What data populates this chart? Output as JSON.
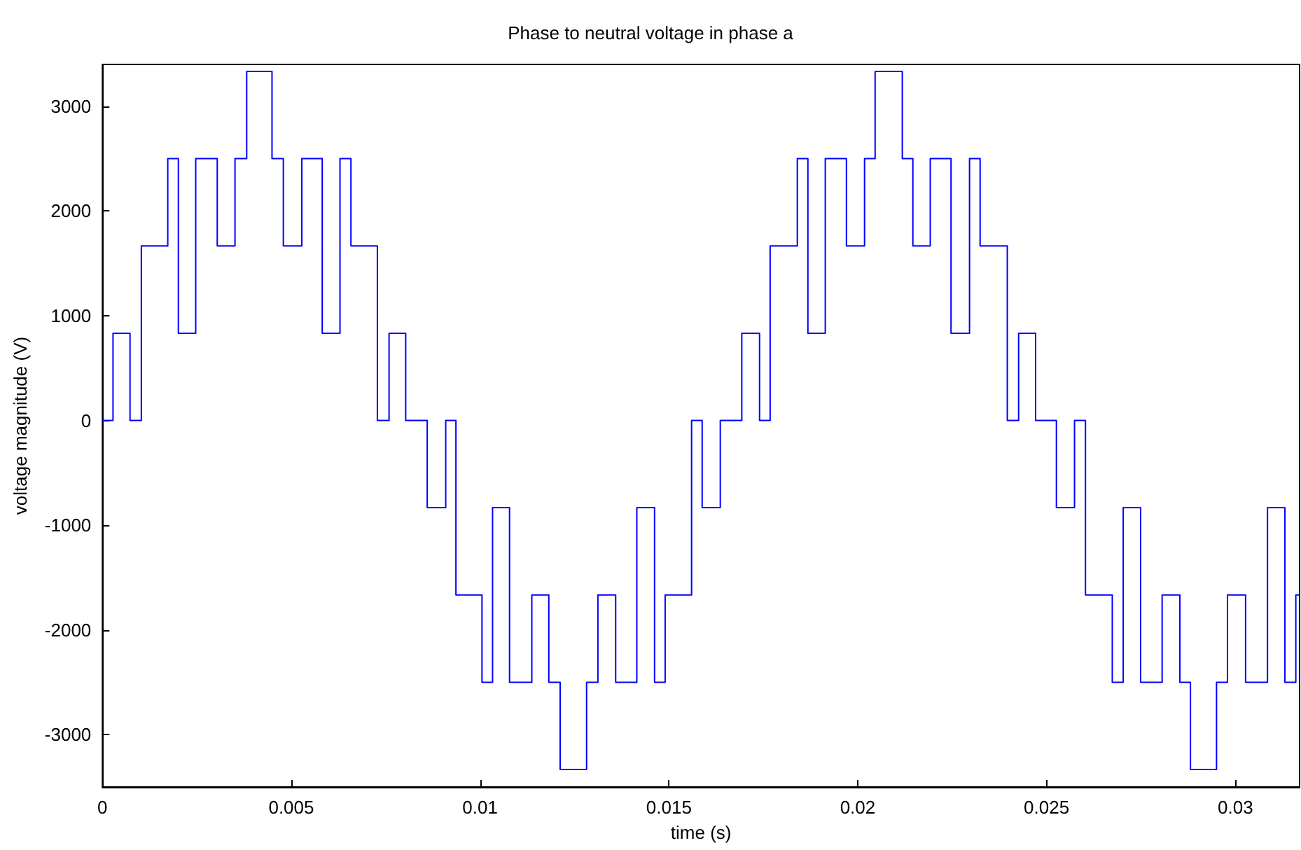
{
  "chart_data": {
    "type": "step",
    "title": "Phase to neutral voltage in phase a",
    "xlabel": "time (s)",
    "ylabel": "voltage magnitude (V)",
    "xlim": [
      0,
      0.0317
    ],
    "xticks": [
      0,
      0.005,
      0.01,
      0.015,
      0.02,
      0.025,
      0.03
    ],
    "ylim": [
      -3500,
      3400
    ],
    "yticks": [
      -3000,
      -2000,
      -1000,
      0,
      1000,
      2000,
      3000
    ],
    "marker": "none",
    "line_style": "solid",
    "series": [
      {
        "color": "#0000ff",
        "x": [
          0,
          0.00028,
          0.00073,
          0.00103,
          0.00173,
          0.00201,
          0.00247,
          0.00304,
          0.00351,
          0.00382,
          0.00449,
          0.00479,
          0.00528,
          0.00582,
          0.00629,
          0.00658,
          0.00728,
          0.00759,
          0.00803,
          0.0086,
          0.00909,
          0.00936,
          0.01005,
          0.01033,
          0.01078,
          0.01137,
          0.01182,
          0.01212,
          0.01282,
          0.01312,
          0.01359,
          0.01415,
          0.01462,
          0.0149,
          0.0156,
          0.01588,
          0.01636,
          0.01693,
          0.0174,
          0.01768,
          0.0184,
          0.01868,
          0.01914,
          0.0197,
          0.02018,
          0.02046,
          0.02118,
          0.02146,
          0.02192,
          0.02247,
          0.02296,
          0.02324,
          0.02396,
          0.02426,
          0.02471,
          0.02526,
          0.02574,
          0.02603,
          0.02674,
          0.02703,
          0.02749,
          0.02806,
          0.02853,
          0.02881,
          0.0295,
          0.02979,
          0.03027,
          0.03085,
          0.03131,
          0.0316,
          0.0317
        ],
        "values": [
          0,
          833,
          0,
          1667,
          2500,
          833,
          2500,
          1667,
          2500,
          3333,
          2500,
          1667,
          2500,
          833,
          2500,
          1667,
          0,
          833,
          0,
          -833,
          0,
          -1667,
          -2500,
          -833,
          -2500,
          -1667,
          -2500,
          -3333,
          -2500,
          -1667,
          -2500,
          -833,
          -2500,
          -1667,
          0,
          -833,
          0,
          833,
          0,
          1667,
          2500,
          833,
          2500,
          1667,
          2500,
          3333,
          2500,
          1667,
          2500,
          833,
          2500,
          1667,
          0,
          833,
          0,
          -833,
          0,
          -1667,
          -2500,
          -833,
          -2500,
          -1667,
          -2500,
          -3333,
          -2500,
          -1667,
          -2500,
          -833,
          -2500,
          -1667,
          -1667
        ]
      }
    ]
  }
}
